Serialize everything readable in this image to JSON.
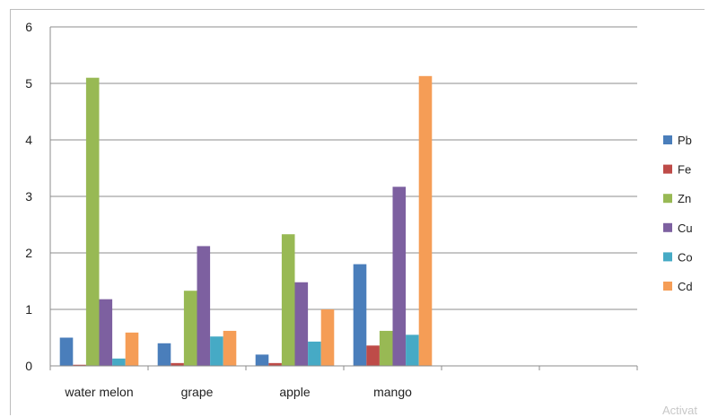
{
  "chart_data": {
    "type": "bar",
    "categories": [
      "water melon",
      "grape",
      "apple",
      "mango",
      "",
      ""
    ],
    "series": [
      {
        "name": "Pb",
        "color": "#4a7ebb",
        "values": [
          0.5,
          0.4,
          0.2,
          1.8,
          null,
          null
        ]
      },
      {
        "name": "Fe",
        "color": "#be4b48",
        "values": [
          0.02,
          0.05,
          0.05,
          0.36,
          null,
          null
        ]
      },
      {
        "name": "Zn",
        "color": "#98b954",
        "values": [
          5.1,
          1.33,
          2.33,
          0.62,
          null,
          null
        ]
      },
      {
        "name": "Cu",
        "color": "#7d60a0",
        "values": [
          1.18,
          2.12,
          1.48,
          3.17,
          null,
          null
        ]
      },
      {
        "name": "Co",
        "color": "#46aac5",
        "values": [
          0.13,
          0.52,
          0.43,
          0.55,
          null,
          null
        ]
      },
      {
        "name": "Cd",
        "color": "#f59d56",
        "values": [
          0.59,
          0.62,
          1.0,
          5.13,
          null,
          null
        ]
      }
    ],
    "ylim": [
      0,
      6
    ],
    "yticks": [
      0,
      1,
      2,
      3,
      4,
      5,
      6
    ],
    "grid": true,
    "legend_position": "right",
    "title": "",
    "xlabel": "",
    "ylabel": ""
  },
  "watermark": "Activat"
}
